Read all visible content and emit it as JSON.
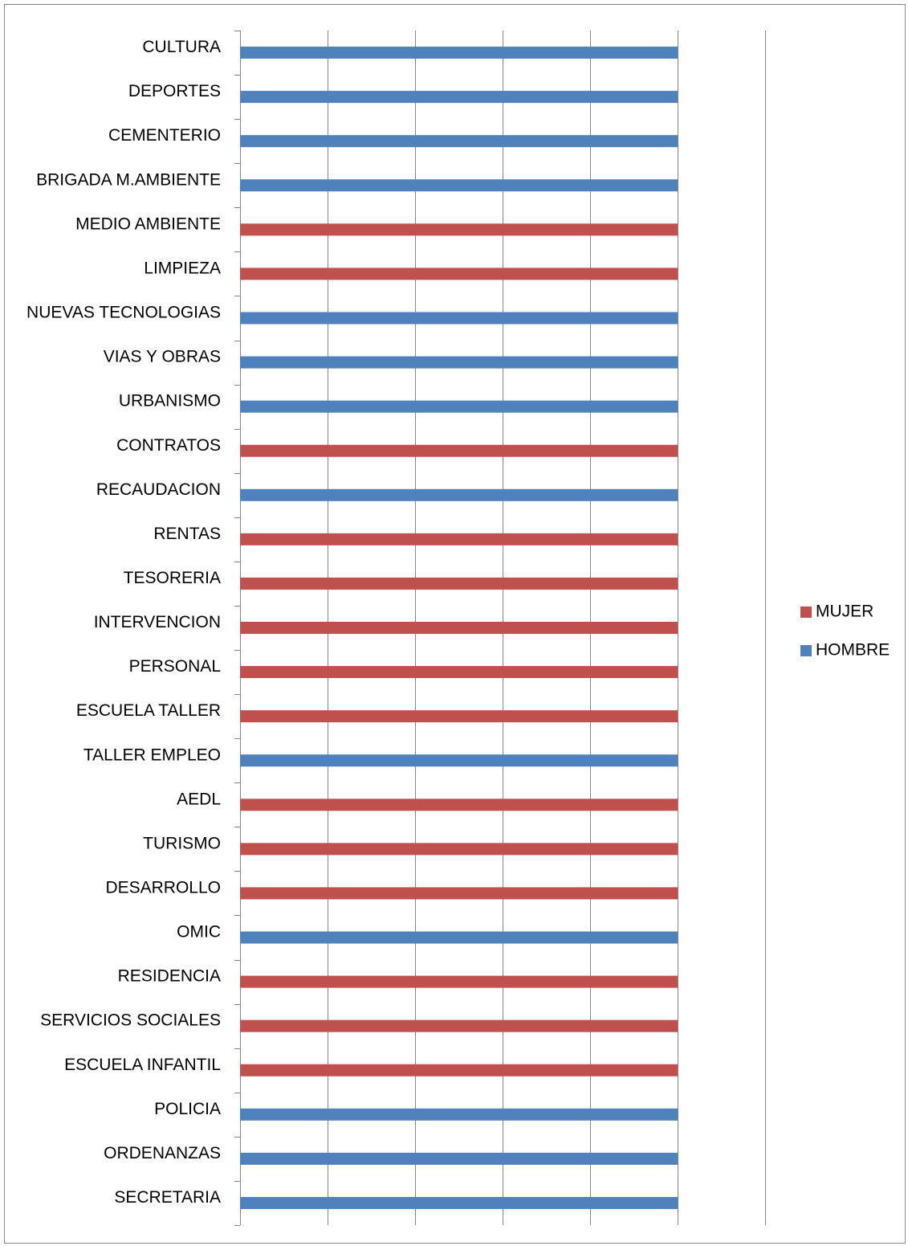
{
  "chart_data": {
    "type": "bar",
    "orientation": "horizontal",
    "stacked": true,
    "title": "",
    "xlabel": "",
    "ylabel": "",
    "xlim": [
      0,
      1.2
    ],
    "x_gridlines": [
      0,
      0.2,
      0.4,
      0.6,
      0.8,
      1.0,
      1.2
    ],
    "grid": true,
    "legend_position": "right",
    "categories": [
      "SECRETARIA",
      "ORDENANZAS",
      "POLICIA",
      "ESCUELA INFANTIL",
      "SERVICIOS SOCIALES",
      "RESIDENCIA",
      "OMIC",
      "DESARROLLO",
      "TURISMO",
      "AEDL",
      "TALLER EMPLEO",
      "ESCUELA TALLER",
      "PERSONAL",
      "INTERVENCION",
      "TESORERIA",
      "RENTAS",
      "RECAUDACION",
      "CONTRATOS",
      "URBANISMO",
      "VIAS Y OBRAS",
      "NUEVAS TECNOLOGIAS",
      "LIMPIEZA",
      "MEDIO AMBIENTE",
      "BRIGADA M.AMBIENTE",
      "CEMENTERIO",
      "DEPORTES",
      "CULTURA"
    ],
    "series": [
      {
        "name": "HOMBRE",
        "color": "#4f81bd",
        "values": [
          1,
          1,
          1,
          0,
          0,
          0,
          1,
          0,
          0,
          0,
          1,
          0,
          0,
          0,
          0,
          0,
          1,
          0,
          1,
          1,
          1,
          0,
          0,
          1,
          1,
          1,
          1
        ]
      },
      {
        "name": "MUJER",
        "color": "#c0504d",
        "values": [
          0,
          0,
          0,
          1,
          1,
          1,
          0,
          1,
          1,
          1,
          0,
          1,
          1,
          1,
          1,
          1,
          0,
          1,
          0,
          0,
          0,
          1,
          1,
          0,
          0,
          0,
          0
        ]
      }
    ],
    "legend_order": [
      "MUJER",
      "HOMBRE"
    ],
    "gridline_color": "#868686",
    "axis_color": "#868686"
  }
}
